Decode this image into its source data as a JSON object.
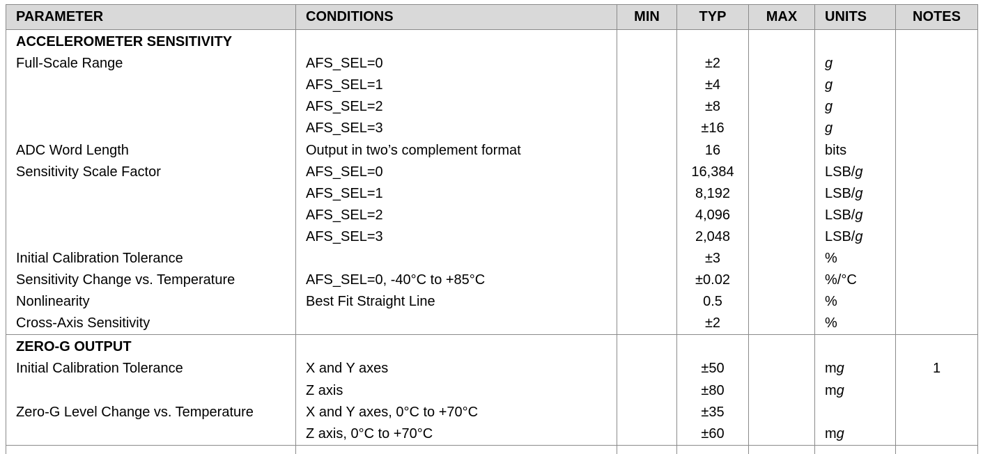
{
  "columns": [
    "PARAMETER",
    "CONDITIONS",
    "MIN",
    "TYP",
    "MAX",
    "UNITS",
    "NOTES"
  ],
  "rows": [
    {
      "section": true,
      "parameter": "ACCELEROMETER SENSITIVITY",
      "conditions": "",
      "min": "",
      "typ": "",
      "max": "",
      "units_pre": "",
      "units_var": "",
      "notes": ""
    },
    {
      "parameter": "Full-Scale Range",
      "conditions": "AFS_SEL=0",
      "min": "",
      "typ": "±2",
      "max": "",
      "units_pre": "",
      "units_var": "g",
      "notes": ""
    },
    {
      "parameter": "",
      "conditions": "AFS_SEL=1",
      "min": "",
      "typ": "±4",
      "max": "",
      "units_pre": "",
      "units_var": "g",
      "notes": ""
    },
    {
      "parameter": "",
      "conditions": "AFS_SEL=2",
      "min": "",
      "typ": "±8",
      "max": "",
      "units_pre": "",
      "units_var": "g",
      "notes": ""
    },
    {
      "parameter": "",
      "conditions": "AFS_SEL=3",
      "min": "",
      "typ": "±16",
      "max": "",
      "units_pre": "",
      "units_var": "g",
      "notes": ""
    },
    {
      "parameter": "ADC Word Length",
      "conditions": "Output in two’s complement format",
      "min": "",
      "typ": "16",
      "max": "",
      "units_pre": "bits",
      "units_var": "",
      "notes": ""
    },
    {
      "parameter": "Sensitivity Scale Factor",
      "conditions": "AFS_SEL=0",
      "min": "",
      "typ": "16,384",
      "max": "",
      "units_pre": "LSB/",
      "units_var": "g",
      "notes": ""
    },
    {
      "parameter": "",
      "conditions": "AFS_SEL=1",
      "min": "",
      "typ": "8,192",
      "max": "",
      "units_pre": "LSB/",
      "units_var": "g",
      "notes": ""
    },
    {
      "parameter": "",
      "conditions": "AFS_SEL=2",
      "min": "",
      "typ": "4,096",
      "max": "",
      "units_pre": "LSB/",
      "units_var": "g",
      "notes": ""
    },
    {
      "parameter": "",
      "conditions": "AFS_SEL=3",
      "min": "",
      "typ": "2,048",
      "max": "",
      "units_pre": "LSB/",
      "units_var": "g",
      "notes": ""
    },
    {
      "parameter": "Initial Calibration Tolerance",
      "conditions": "",
      "min": "",
      "typ": "±3",
      "max": "",
      "units_pre": "%",
      "units_var": "",
      "notes": ""
    },
    {
      "parameter": "Sensitivity Change vs. Temperature",
      "conditions": "AFS_SEL=0, -40°C to +85°C",
      "min": "",
      "typ": "±0.02",
      "max": "",
      "units_pre": "%/°C",
      "units_var": "",
      "notes": ""
    },
    {
      "parameter": "Nonlinearity",
      "conditions": "Best Fit Straight Line",
      "min": "",
      "typ": "0.5",
      "max": "",
      "units_pre": "%",
      "units_var": "",
      "notes": ""
    },
    {
      "parameter": "Cross-Axis Sensitivity",
      "conditions": "",
      "min": "",
      "typ": "±2",
      "max": "",
      "units_pre": "%",
      "units_var": "",
      "notes": ""
    },
    {
      "section": true,
      "break": true,
      "parameter": "ZERO-G OUTPUT",
      "conditions": "",
      "min": "",
      "typ": "",
      "max": "",
      "units_pre": "",
      "units_var": "",
      "notes": ""
    },
    {
      "parameter": "Initial Calibration Tolerance",
      "conditions": "X and Y axes",
      "min": "",
      "typ": "±50",
      "max": "",
      "units_pre": "m",
      "units_var": "g",
      "notes": "1"
    },
    {
      "parameter": "",
      "conditions": "Z axis",
      "min": "",
      "typ": "±80",
      "max": "",
      "units_pre": "m",
      "units_var": "g",
      "notes": ""
    },
    {
      "parameter": "Zero-G Level Change vs. Temperature",
      "conditions": "X and Y axes, 0°C to +70°C",
      "min": "",
      "typ": "±35",
      "max": "",
      "units_pre": "",
      "units_var": "",
      "notes": ""
    },
    {
      "parameter": "",
      "conditions": "Z axis, 0°C to +70°C",
      "min": "",
      "typ": "±60",
      "max": "",
      "units_pre": "m",
      "units_var": "g",
      "notes": ""
    },
    {
      "stub": true,
      "break": true,
      "parameter": "",
      "conditions": "",
      "min": "",
      "typ": "",
      "max": "",
      "units_pre": "",
      "units_var": "",
      "notes": ""
    }
  ]
}
